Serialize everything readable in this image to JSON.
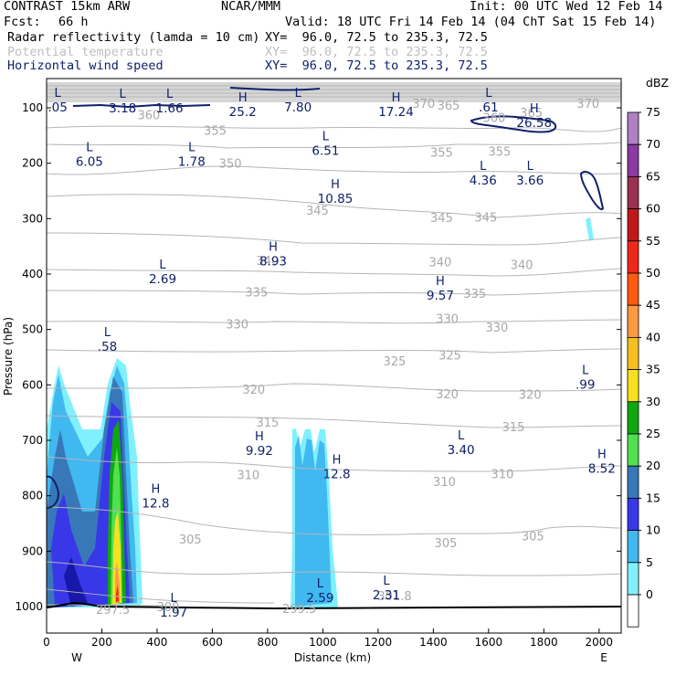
{
  "header": {
    "model": "CONTRAST 15km ARW",
    "org": "NCAR/MMM",
    "init": "Init: 00 UTC Wed 12 Feb 14",
    "fcst_label": "Fcst:",
    "fcst_value": "66 h",
    "valid": "Valid: 18 UTC Fri 14 Feb 14 (04 ChT Sat 15 Feb 14)",
    "fields": [
      {
        "name": "Radar reflectivity (lamda = 10 cm)",
        "xy": "XY=  96.0, 72.5 to 235.3, 72.5",
        "color": "#000000"
      },
      {
        "name": "Potential temperature",
        "xy": "XY=  96.0, 72.5 to 235.3, 72.5",
        "color": "#bfbfbf"
      },
      {
        "name": "Horizontal wind speed",
        "xy": "XY=  96.0, 72.5 to 235.3, 72.5",
        "color": "#10206a"
      }
    ]
  },
  "chart_data": {
    "type": "cross-section",
    "title": "Radar reflectivity / Potential temperature / Horizontal wind speed",
    "xlabel": "Distance (km)",
    "ylabel": "Pressure (hPa)",
    "xlim": [
      0,
      2080
    ],
    "ylim": [
      1050,
      60
    ],
    "x_ticks": [
      0,
      200,
      400,
      600,
      800,
      1000,
      1200,
      1400,
      1600,
      1800,
      2000
    ],
    "y_ticks": [
      100,
      200,
      300,
      400,
      500,
      600,
      700,
      800,
      900,
      1000
    ],
    "x_end_labels": {
      "left": "W",
      "right": "E"
    },
    "colorbar": {
      "unit": "dBZ",
      "levels": [
        75,
        70,
        65,
        60,
        55,
        50,
        45,
        40,
        35,
        30,
        25,
        20,
        15,
        10,
        5,
        0
      ],
      "colors": [
        "#b07fc4",
        "#8a3aa0",
        "#9c3050",
        "#c01818",
        "#ee2818",
        "#ff5a10",
        "#ff9a40",
        "#f5c020",
        "#f8e020",
        "#10a810",
        "#50e050",
        "#3878b8",
        "#3838e8",
        "#40b8f0",
        "#80f0ff",
        "#ffffff"
      ]
    },
    "theta_labels": [
      {
        "v": "360",
        "x": 370,
        "p": 112
      },
      {
        "v": "365",
        "x": 1455,
        "p": 95
      },
      {
        "v": "365",
        "x": 1755,
        "p": 108
      },
      {
        "v": "370",
        "x": 1365,
        "p": 92
      },
      {
        "v": "370",
        "x": 1960,
        "p": 92
      },
      {
        "v": "360",
        "x": 1620,
        "p": 117
      },
      {
        "v": "355",
        "x": 610,
        "p": 140
      },
      {
        "v": "355",
        "x": 1430,
        "p": 180
      },
      {
        "v": "355",
        "x": 1640,
        "p": 178
      },
      {
        "v": "350",
        "x": 665,
        "p": 200
      },
      {
        "v": "345",
        "x": 980,
        "p": 285
      },
      {
        "v": "345",
        "x": 1430,
        "p": 298
      },
      {
        "v": "345",
        "x": 1590,
        "p": 297
      },
      {
        "v": "340",
        "x": 800,
        "p": 375
      },
      {
        "v": "340",
        "x": 1425,
        "p": 378
      },
      {
        "v": "340",
        "x": 1720,
        "p": 383
      },
      {
        "v": "335",
        "x": 760,
        "p": 432
      },
      {
        "v": "335",
        "x": 1550,
        "p": 435
      },
      {
        "v": "330",
        "x": 690,
        "p": 490
      },
      {
        "v": "330",
        "x": 1450,
        "p": 480
      },
      {
        "v": "330",
        "x": 1630,
        "p": 496
      },
      {
        "v": "325",
        "x": 1260,
        "p": 557
      },
      {
        "v": "325",
        "x": 1460,
        "p": 546
      },
      {
        "v": "320",
        "x": 750,
        "p": 608
      },
      {
        "v": "320",
        "x": 1450,
        "p": 616
      },
      {
        "v": "320",
        "x": 1750,
        "p": 617
      },
      {
        "v": "315",
        "x": 800,
        "p": 667
      },
      {
        "v": "315",
        "x": 1690,
        "p": 675
      },
      {
        "v": "310",
        "x": 730,
        "p": 762
      },
      {
        "v": "310",
        "x": 1440,
        "p": 774
      },
      {
        "v": "310",
        "x": 1650,
        "p": 760
      },
      {
        "v": "305",
        "x": 520,
        "p": 878
      },
      {
        "v": "305",
        "x": 1445,
        "p": 885
      },
      {
        "v": "305",
        "x": 1760,
        "p": 872
      },
      {
        "v": "300",
        "x": 440,
        "p": 1000
      },
      {
        "v": "297.5",
        "x": 240,
        "p": 1005
      },
      {
        "v": "299.5",
        "x": 915,
        "p": 1003
      },
      {
        "v": "301.8",
        "x": 1260,
        "p": 980
      }
    ],
    "wind_extrema": [
      {
        "t": "L",
        "v": ".05",
        "x": 40,
        "p": 90
      },
      {
        "t": "L",
        "v": "3.18",
        "x": 275,
        "p": 92
      },
      {
        "t": "L",
        "v": "1.66",
        "x": 445,
        "p": 92
      },
      {
        "t": "H",
        "v": "25.2",
        "x": 710,
        "p": 98
      },
      {
        "t": "L",
        "v": "7.80",
        "x": 910,
        "p": 90
      },
      {
        "t": "H",
        "v": "17.24",
        "x": 1265,
        "p": 98
      },
      {
        "t": "L",
        "v": ".61",
        "x": 1600,
        "p": 90
      },
      {
        "t": "H",
        "v": "26.58",
        "x": 1765,
        "p": 118
      },
      {
        "t": "L",
        "v": "6.05",
        "x": 155,
        "p": 188
      },
      {
        "t": "L",
        "v": "1.78",
        "x": 525,
        "p": 188
      },
      {
        "t": "L",
        "v": "6.51",
        "x": 1010,
        "p": 168
      },
      {
        "t": "L",
        "v": "4.36",
        "x": 1580,
        "p": 222
      },
      {
        "t": "L",
        "v": "3.66",
        "x": 1750,
        "p": 222
      },
      {
        "t": "H",
        "v": "10.85",
        "x": 1045,
        "p": 255
      },
      {
        "t": "H",
        "v": "8.93",
        "x": 820,
        "p": 368
      },
      {
        "t": "L",
        "v": "2.69",
        "x": 420,
        "p": 400
      },
      {
        "t": "H",
        "v": "9.57",
        "x": 1425,
        "p": 430
      },
      {
        "t": "L",
        "v": ".58",
        "x": 220,
        "p": 522
      },
      {
        "t": "L",
        "v": ".99",
        "x": 1950,
        "p": 590
      },
      {
        "t": "H",
        "v": "9.92",
        "x": 770,
        "p": 710
      },
      {
        "t": "L",
        "v": "3.40",
        "x": 1500,
        "p": 708
      },
      {
        "t": "H",
        "v": "12.8",
        "x": 1050,
        "p": 752
      },
      {
        "t": "H",
        "v": "8.52",
        "x": 2010,
        "p": 742
      },
      {
        "t": "H",
        "v": "12.8",
        "x": 395,
        "p": 805
      },
      {
        "t": "L",
        "v": "2.59",
        "x": 990,
        "p": 975
      },
      {
        "t": "L",
        "v": "2.31",
        "x": 1230,
        "p": 970
      },
      {
        "t": "L",
        "v": "1.97",
        "x": 460,
        "p": 1002
      }
    ]
  }
}
